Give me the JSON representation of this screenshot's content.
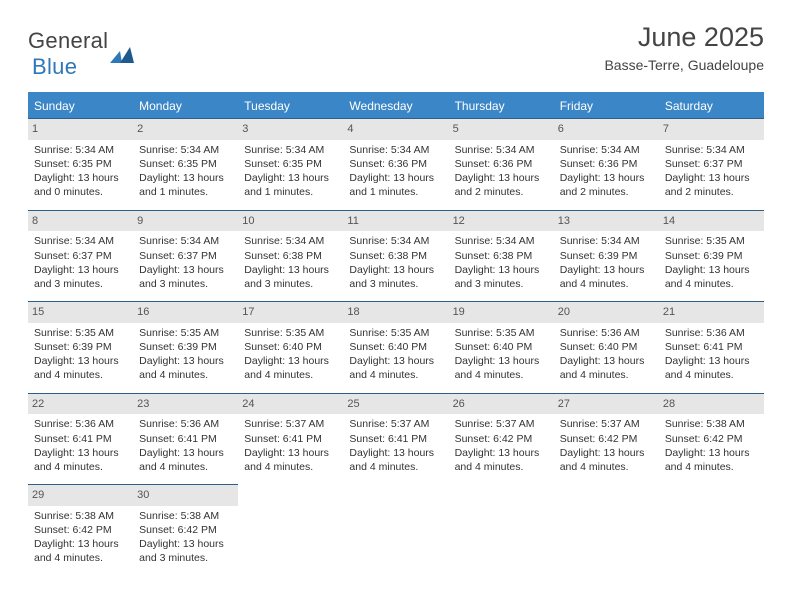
{
  "logo": {
    "line1": "General",
    "line2": "Blue"
  },
  "title": "June 2025",
  "subtitle": "Basse-Terre, Guadeloupe",
  "colors": {
    "accent": "#3b86c6",
    "border": "#2f5f87",
    "cellbar": "#e6e6e6",
    "text": "#333333"
  },
  "dayNames": [
    "Sunday",
    "Monday",
    "Tuesday",
    "Wednesday",
    "Thursday",
    "Friday",
    "Saturday"
  ],
  "weeks": [
    [
      {
        "n": "1",
        "sr": "5:34 AM",
        "ss": "6:35 PM",
        "dh": "13",
        "dm": "0"
      },
      {
        "n": "2",
        "sr": "5:34 AM",
        "ss": "6:35 PM",
        "dh": "13",
        "dm": "1"
      },
      {
        "n": "3",
        "sr": "5:34 AM",
        "ss": "6:35 PM",
        "dh": "13",
        "dm": "1"
      },
      {
        "n": "4",
        "sr": "5:34 AM",
        "ss": "6:36 PM",
        "dh": "13",
        "dm": "1"
      },
      {
        "n": "5",
        "sr": "5:34 AM",
        "ss": "6:36 PM",
        "dh": "13",
        "dm": "2"
      },
      {
        "n": "6",
        "sr": "5:34 AM",
        "ss": "6:36 PM",
        "dh": "13",
        "dm": "2"
      },
      {
        "n": "7",
        "sr": "5:34 AM",
        "ss": "6:37 PM",
        "dh": "13",
        "dm": "2"
      }
    ],
    [
      {
        "n": "8",
        "sr": "5:34 AM",
        "ss": "6:37 PM",
        "dh": "13",
        "dm": "3"
      },
      {
        "n": "9",
        "sr": "5:34 AM",
        "ss": "6:37 PM",
        "dh": "13",
        "dm": "3"
      },
      {
        "n": "10",
        "sr": "5:34 AM",
        "ss": "6:38 PM",
        "dh": "13",
        "dm": "3"
      },
      {
        "n": "11",
        "sr": "5:34 AM",
        "ss": "6:38 PM",
        "dh": "13",
        "dm": "3"
      },
      {
        "n": "12",
        "sr": "5:34 AM",
        "ss": "6:38 PM",
        "dh": "13",
        "dm": "3"
      },
      {
        "n": "13",
        "sr": "5:34 AM",
        "ss": "6:39 PM",
        "dh": "13",
        "dm": "4"
      },
      {
        "n": "14",
        "sr": "5:35 AM",
        "ss": "6:39 PM",
        "dh": "13",
        "dm": "4"
      }
    ],
    [
      {
        "n": "15",
        "sr": "5:35 AM",
        "ss": "6:39 PM",
        "dh": "13",
        "dm": "4"
      },
      {
        "n": "16",
        "sr": "5:35 AM",
        "ss": "6:39 PM",
        "dh": "13",
        "dm": "4"
      },
      {
        "n": "17",
        "sr": "5:35 AM",
        "ss": "6:40 PM",
        "dh": "13",
        "dm": "4"
      },
      {
        "n": "18",
        "sr": "5:35 AM",
        "ss": "6:40 PM",
        "dh": "13",
        "dm": "4"
      },
      {
        "n": "19",
        "sr": "5:35 AM",
        "ss": "6:40 PM",
        "dh": "13",
        "dm": "4"
      },
      {
        "n": "20",
        "sr": "5:36 AM",
        "ss": "6:40 PM",
        "dh": "13",
        "dm": "4"
      },
      {
        "n": "21",
        "sr": "5:36 AM",
        "ss": "6:41 PM",
        "dh": "13",
        "dm": "4"
      }
    ],
    [
      {
        "n": "22",
        "sr": "5:36 AM",
        "ss": "6:41 PM",
        "dh": "13",
        "dm": "4"
      },
      {
        "n": "23",
        "sr": "5:36 AM",
        "ss": "6:41 PM",
        "dh": "13",
        "dm": "4"
      },
      {
        "n": "24",
        "sr": "5:37 AM",
        "ss": "6:41 PM",
        "dh": "13",
        "dm": "4"
      },
      {
        "n": "25",
        "sr": "5:37 AM",
        "ss": "6:41 PM",
        "dh": "13",
        "dm": "4"
      },
      {
        "n": "26",
        "sr": "5:37 AM",
        "ss": "6:42 PM",
        "dh": "13",
        "dm": "4"
      },
      {
        "n": "27",
        "sr": "5:37 AM",
        "ss": "6:42 PM",
        "dh": "13",
        "dm": "4"
      },
      {
        "n": "28",
        "sr": "5:38 AM",
        "ss": "6:42 PM",
        "dh": "13",
        "dm": "4"
      }
    ],
    [
      {
        "n": "29",
        "sr": "5:38 AM",
        "ss": "6:42 PM",
        "dh": "13",
        "dm": "4"
      },
      {
        "n": "30",
        "sr": "5:38 AM",
        "ss": "6:42 PM",
        "dh": "13",
        "dm": "3"
      },
      null,
      null,
      null,
      null,
      null
    ]
  ],
  "labels": {
    "sunrise": "Sunrise:",
    "sunset": "Sunset:",
    "daylight_prefix": "Daylight:",
    "hours_word": "hours",
    "and_word": "and",
    "minutes_word": "minutes."
  }
}
